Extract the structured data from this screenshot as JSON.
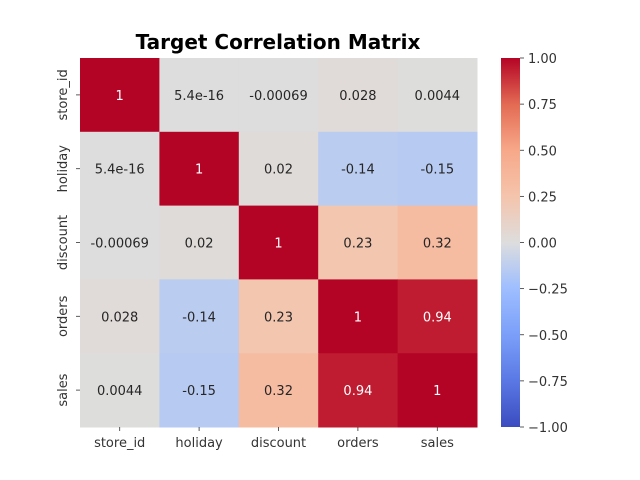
{
  "chart_data": {
    "type": "heatmap",
    "title": "Target Correlation Matrix",
    "rows": [
      "store_id",
      "holiday",
      "discount",
      "orders",
      "sales"
    ],
    "columns": [
      "store_id",
      "holiday",
      "discount",
      "orders",
      "sales"
    ],
    "values": [
      [
        1,
        5.4e-16,
        -0.00069,
        0.028,
        0.0044
      ],
      [
        5.4e-16,
        1,
        0.02,
        -0.14,
        -0.15
      ],
      [
        -0.00069,
        0.02,
        1,
        0.23,
        0.32
      ],
      [
        0.028,
        -0.14,
        0.23,
        1,
        0.94
      ],
      [
        0.0044,
        -0.15,
        0.32,
        0.94,
        1
      ]
    ],
    "labels": [
      [
        "1",
        "5.4e-16",
        "-0.00069",
        "0.028",
        "0.0044"
      ],
      [
        "5.4e-16",
        "1",
        "0.02",
        "-0.14",
        "-0.15"
      ],
      [
        "-0.00069",
        "0.02",
        "1",
        "0.23",
        "0.32"
      ],
      [
        "0.028",
        "-0.14",
        "0.23",
        "1",
        "0.94"
      ],
      [
        "0.0044",
        "-0.15",
        "0.32",
        "0.94",
        "1"
      ]
    ],
    "colormap": "coolwarm",
    "vmin": -1,
    "vmax": 1,
    "colorbar_ticks": [
      "1.00",
      "0.75",
      "0.50",
      "0.25",
      "0.00",
      "−0.25",
      "−0.50",
      "−0.75",
      "−1.00"
    ],
    "colorbar_tick_values": [
      1,
      0.75,
      0.5,
      0.25,
      0,
      -0.25,
      -0.5,
      -0.75,
      -1
    ]
  }
}
